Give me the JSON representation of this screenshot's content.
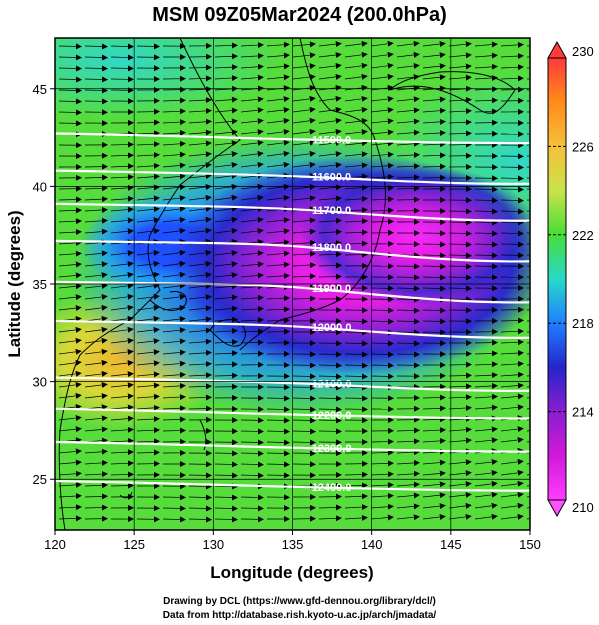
{
  "title": "MSM 09Z05Mar2024 (200.0hPa)",
  "credits": {
    "line1": "Drawing by DCL (https://www.gfd-dennou.org/library/dcl/)",
    "line2": "Data from http://database.rish.kyoto-u.ac.jp/arch/jmadata/"
  },
  "map": {
    "xlabel": "Longitude (degrees)",
    "ylabel": "Latitude  (degrees)",
    "xticks": [
      "120",
      "125",
      "130",
      "135",
      "140",
      "145",
      "150"
    ],
    "yticks": [
      "25",
      "30",
      "35",
      "40",
      "45"
    ],
    "xlim": [
      120,
      150
    ],
    "ylim": [
      22.4,
      47.6
    ]
  },
  "contours": [
    {
      "label": "11500.0",
      "lon": 135.7,
      "lat": 42.4
    },
    {
      "label": "11600.0",
      "lon": 135.7,
      "lat": 40.5
    },
    {
      "label": "11700.0",
      "lon": 135.7,
      "lat": 38.8
    },
    {
      "label": "11800.0",
      "lon": 135.7,
      "lat": 36.9
    },
    {
      "label": "11900.0",
      "lon": 135.7,
      "lat": 34.8
    },
    {
      "label": "12000.0",
      "lon": 135.7,
      "lat": 32.8
    },
    {
      "label": "12100.0",
      "lon": 135.7,
      "lat": 29.9
    },
    {
      "label": "12200.0",
      "lon": 135.7,
      "lat": 28.3
    },
    {
      "label": "12300.0",
      "lon": 135.7,
      "lat": 26.6
    },
    {
      "label": "12400.0",
      "lon": 135.7,
      "lat": 24.6
    }
  ],
  "colorbar": {
    "labels": [
      "230",
      "226",
      "222",
      "218",
      "214",
      "210"
    ],
    "min": 210,
    "max": 230,
    "colors": [
      "#ff3a3a",
      "#ff8c1a",
      "#f5c03a",
      "#c9e34a",
      "#47dd38",
      "#28d9c8",
      "#1f7fff",
      "#2525cc",
      "#8a1ed0",
      "#d01ad8",
      "#ff3cff"
    ]
  }
}
